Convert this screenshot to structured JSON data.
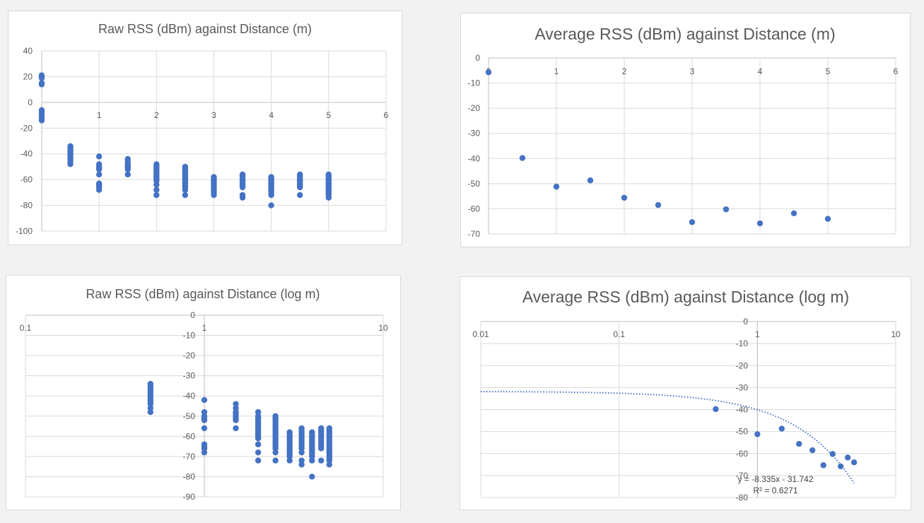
{
  "chart_data": [
    {
      "type": "scatter",
      "title": "Raw RSS (dBm) against Distance (m)",
      "x_scale": "linear",
      "xlim": [
        0,
        6
      ],
      "ylim": [
        -100,
        40
      ],
      "x_ticks": [
        1,
        2,
        3,
        4,
        5,
        6
      ],
      "y_ticks": [
        40,
        20,
        0,
        -20,
        -40,
        -60,
        -80,
        -100
      ],
      "grid": true,
      "points": [
        [
          0,
          21
        ],
        [
          0,
          20
        ],
        [
          0,
          19
        ],
        [
          0,
          15
        ],
        [
          0,
          14
        ],
        [
          0,
          -6
        ],
        [
          0,
          -8
        ],
        [
          0,
          -10
        ],
        [
          0,
          -12
        ],
        [
          0,
          -14
        ],
        [
          0.5,
          -34
        ],
        [
          0.5,
          -35
        ],
        [
          0.5,
          -36
        ],
        [
          0.5,
          -37
        ],
        [
          0.5,
          -38
        ],
        [
          0.5,
          -39
        ],
        [
          0.5,
          -40
        ],
        [
          0.5,
          -41
        ],
        [
          0.5,
          -42
        ],
        [
          0.5,
          -43
        ],
        [
          0.5,
          -44
        ],
        [
          0.5,
          -46
        ],
        [
          0.5,
          -48
        ],
        [
          1,
          -42
        ],
        [
          1,
          -48
        ],
        [
          1,
          -50
        ],
        [
          1,
          -51
        ],
        [
          1,
          -52
        ],
        [
          1,
          -56
        ],
        [
          1,
          -63
        ],
        [
          1,
          -64
        ],
        [
          1,
          -65
        ],
        [
          1,
          -66
        ],
        [
          1,
          -68
        ],
        [
          1.5,
          -44
        ],
        [
          1.5,
          -46
        ],
        [
          1.5,
          -48
        ],
        [
          1.5,
          -49
        ],
        [
          1.5,
          -50
        ],
        [
          1.5,
          -51
        ],
        [
          1.5,
          -52
        ],
        [
          1.5,
          -56
        ],
        [
          2,
          -48
        ],
        [
          2,
          -49
        ],
        [
          2,
          -50
        ],
        [
          2,
          -51
        ],
        [
          2,
          -52
        ],
        [
          2,
          -53
        ],
        [
          2,
          -54
        ],
        [
          2,
          -55
        ],
        [
          2,
          -56
        ],
        [
          2,
          -57
        ],
        [
          2,
          -58
        ],
        [
          2,
          -59
        ],
        [
          2,
          -60
        ],
        [
          2,
          -61
        ],
        [
          2,
          -64
        ],
        [
          2,
          -68
        ],
        [
          2,
          -72
        ],
        [
          2.5,
          -50
        ],
        [
          2.5,
          -51
        ],
        [
          2.5,
          -52
        ],
        [
          2.5,
          -53
        ],
        [
          2.5,
          -54
        ],
        [
          2.5,
          -55
        ],
        [
          2.5,
          -56
        ],
        [
          2.5,
          -57
        ],
        [
          2.5,
          -58
        ],
        [
          2.5,
          -59
        ],
        [
          2.5,
          -60
        ],
        [
          2.5,
          -61
        ],
        [
          2.5,
          -62
        ],
        [
          2.5,
          -63
        ],
        [
          2.5,
          -64
        ],
        [
          2.5,
          -65
        ],
        [
          2.5,
          -66
        ],
        [
          2.5,
          -68
        ],
        [
          2.5,
          -72
        ],
        [
          3,
          -58
        ],
        [
          3,
          -59
        ],
        [
          3,
          -60
        ],
        [
          3,
          -61
        ],
        [
          3,
          -62
        ],
        [
          3,
          -63
        ],
        [
          3,
          -64
        ],
        [
          3,
          -65
        ],
        [
          3,
          -66
        ],
        [
          3,
          -67
        ],
        [
          3,
          -68
        ],
        [
          3,
          -69
        ],
        [
          3,
          -70
        ],
        [
          3,
          -72
        ],
        [
          3.5,
          -56
        ],
        [
          3.5,
          -57
        ],
        [
          3.5,
          -58
        ],
        [
          3.5,
          -59
        ],
        [
          3.5,
          -60
        ],
        [
          3.5,
          -61
        ],
        [
          3.5,
          -62
        ],
        [
          3.5,
          -63
        ],
        [
          3.5,
          -64
        ],
        [
          3.5,
          -65
        ],
        [
          3.5,
          -66
        ],
        [
          3.5,
          -72
        ],
        [
          3.5,
          -74
        ],
        [
          4,
          -58
        ],
        [
          4,
          -59
        ],
        [
          4,
          -60
        ],
        [
          4,
          -61
        ],
        [
          4,
          -62
        ],
        [
          4,
          -63
        ],
        [
          4,
          -64
        ],
        [
          4,
          -65
        ],
        [
          4,
          -66
        ],
        [
          4,
          -67
        ],
        [
          4,
          -68
        ],
        [
          4,
          -69
        ],
        [
          4,
          -70
        ],
        [
          4,
          -72
        ],
        [
          4,
          -80
        ],
        [
          4.5,
          -56
        ],
        [
          4.5,
          -57
        ],
        [
          4.5,
          -58
        ],
        [
          4.5,
          -59
        ],
        [
          4.5,
          -60
        ],
        [
          4.5,
          -61
        ],
        [
          4.5,
          -62
        ],
        [
          4.5,
          -63
        ],
        [
          4.5,
          -64
        ],
        [
          4.5,
          -65
        ],
        [
          4.5,
          -66
        ],
        [
          4.5,
          -72
        ],
        [
          5,
          -56
        ],
        [
          5,
          -57
        ],
        [
          5,
          -58
        ],
        [
          5,
          -59
        ],
        [
          5,
          -60
        ],
        [
          5,
          -61
        ],
        [
          5,
          -62
        ],
        [
          5,
          -63
        ],
        [
          5,
          -64
        ],
        [
          5,
          -65
        ],
        [
          5,
          -66
        ],
        [
          5,
          -67
        ],
        [
          5,
          -68
        ],
        [
          5,
          -69
        ],
        [
          5,
          -70
        ],
        [
          5,
          -71
        ],
        [
          5,
          -72
        ],
        [
          5,
          -74
        ]
      ]
    },
    {
      "type": "scatter",
      "title": "Average RSS (dBm) against Distance (m)",
      "x_scale": "linear",
      "xlim": [
        0,
        6
      ],
      "ylim": [
        -70,
        0
      ],
      "x_ticks": [
        0,
        1,
        2,
        3,
        4,
        5,
        6
      ],
      "y_ticks": [
        0,
        -10,
        -20,
        -30,
        -40,
        -50,
        -60,
        -70
      ],
      "grid": true,
      "points": [
        [
          0,
          -5.7
        ],
        [
          0.5,
          -39.8
        ],
        [
          1,
          -51.2
        ],
        [
          1.5,
          -48.7
        ],
        [
          2,
          -55.6
        ],
        [
          2.5,
          -58.5
        ],
        [
          3,
          -65.3
        ],
        [
          3.5,
          -60.2
        ],
        [
          4,
          -65.8
        ],
        [
          4.5,
          -61.8
        ],
        [
          5,
          -64
        ]
      ]
    },
    {
      "type": "scatter",
      "title": "Raw RSS (dBm) against Distance (log m)",
      "x_scale": "log",
      "xlim": [
        0.1,
        10
      ],
      "ylim": [
        -90,
        0
      ],
      "x_ticks": [
        "0.1",
        "1",
        "10"
      ],
      "y_ticks": [
        0,
        -10,
        -20,
        -30,
        -40,
        -50,
        -60,
        -70,
        -80,
        -90
      ],
      "grid": true,
      "points": [
        [
          0.5,
          -34
        ],
        [
          0.5,
          -35
        ],
        [
          0.5,
          -36
        ],
        [
          0.5,
          -37
        ],
        [
          0.5,
          -38
        ],
        [
          0.5,
          -39
        ],
        [
          0.5,
          -40
        ],
        [
          0.5,
          -41
        ],
        [
          0.5,
          -42
        ],
        [
          0.5,
          -43
        ],
        [
          0.5,
          -44
        ],
        [
          0.5,
          -46
        ],
        [
          0.5,
          -48
        ],
        [
          1,
          -42
        ],
        [
          1,
          -48
        ],
        [
          1,
          -50
        ],
        [
          1,
          -51
        ],
        [
          1,
          -52
        ],
        [
          1,
          -56
        ],
        [
          1,
          -64
        ],
        [
          1,
          -65
        ],
        [
          1,
          -66
        ],
        [
          1,
          -68
        ],
        [
          1.5,
          -44
        ],
        [
          1.5,
          -46
        ],
        [
          1.5,
          -48
        ],
        [
          1.5,
          -49
        ],
        [
          1.5,
          -50
        ],
        [
          1.5,
          -51
        ],
        [
          1.5,
          -52
        ],
        [
          1.5,
          -56
        ],
        [
          2,
          -48
        ],
        [
          2,
          -50
        ],
        [
          2,
          -51
        ],
        [
          2,
          -52
        ],
        [
          2,
          -53
        ],
        [
          2,
          -54
        ],
        [
          2,
          -55
        ],
        [
          2,
          -56
        ],
        [
          2,
          -57
        ],
        [
          2,
          -58
        ],
        [
          2,
          -59
        ],
        [
          2,
          -60
        ],
        [
          2,
          -61
        ],
        [
          2,
          -64
        ],
        [
          2,
          -68
        ],
        [
          2,
          -72
        ],
        [
          2.5,
          -50
        ],
        [
          2.5,
          -51
        ],
        [
          2.5,
          -52
        ],
        [
          2.5,
          -53
        ],
        [
          2.5,
          -54
        ],
        [
          2.5,
          -55
        ],
        [
          2.5,
          -56
        ],
        [
          2.5,
          -57
        ],
        [
          2.5,
          -58
        ],
        [
          2.5,
          -59
        ],
        [
          2.5,
          -60
        ],
        [
          2.5,
          -61
        ],
        [
          2.5,
          -62
        ],
        [
          2.5,
          -63
        ],
        [
          2.5,
          -64
        ],
        [
          2.5,
          -65
        ],
        [
          2.5,
          -66
        ],
        [
          2.5,
          -68
        ],
        [
          2.5,
          -72
        ],
        [
          3,
          -58
        ],
        [
          3,
          -59
        ],
        [
          3,
          -60
        ],
        [
          3,
          -61
        ],
        [
          3,
          -62
        ],
        [
          3,
          -63
        ],
        [
          3,
          -64
        ],
        [
          3,
          -65
        ],
        [
          3,
          -66
        ],
        [
          3,
          -67
        ],
        [
          3,
          -68
        ],
        [
          3,
          -69
        ],
        [
          3,
          -70
        ],
        [
          3,
          -72
        ],
        [
          3.5,
          -56
        ],
        [
          3.5,
          -57
        ],
        [
          3.5,
          -58
        ],
        [
          3.5,
          -59
        ],
        [
          3.5,
          -60
        ],
        [
          3.5,
          -61
        ],
        [
          3.5,
          -62
        ],
        [
          3.5,
          -63
        ],
        [
          3.5,
          -64
        ],
        [
          3.5,
          -65
        ],
        [
          3.5,
          -66
        ],
        [
          3.5,
          -68
        ],
        [
          3.5,
          -72
        ],
        [
          3.5,
          -74
        ],
        [
          4,
          -58
        ],
        [
          4,
          -59
        ],
        [
          4,
          -60
        ],
        [
          4,
          -61
        ],
        [
          4,
          -62
        ],
        [
          4,
          -63
        ],
        [
          4,
          -64
        ],
        [
          4,
          -65
        ],
        [
          4,
          -66
        ],
        [
          4,
          -67
        ],
        [
          4,
          -68
        ],
        [
          4,
          -69
        ],
        [
          4,
          -70
        ],
        [
          4,
          -72
        ],
        [
          4,
          -80
        ],
        [
          4.5,
          -56
        ],
        [
          4.5,
          -57
        ],
        [
          4.5,
          -58
        ],
        [
          4.5,
          -59
        ],
        [
          4.5,
          -60
        ],
        [
          4.5,
          -61
        ],
        [
          4.5,
          -62
        ],
        [
          4.5,
          -63
        ],
        [
          4.5,
          -64
        ],
        [
          4.5,
          -65
        ],
        [
          4.5,
          -66
        ],
        [
          4.5,
          -72
        ],
        [
          5,
          -56
        ],
        [
          5,
          -57
        ],
        [
          5,
          -58
        ],
        [
          5,
          -59
        ],
        [
          5,
          -60
        ],
        [
          5,
          -61
        ],
        [
          5,
          -62
        ],
        [
          5,
          -63
        ],
        [
          5,
          -64
        ],
        [
          5,
          -65
        ],
        [
          5,
          -66
        ],
        [
          5,
          -67
        ],
        [
          5,
          -68
        ],
        [
          5,
          -69
        ],
        [
          5,
          -70
        ],
        [
          5,
          -71
        ],
        [
          5,
          -72
        ],
        [
          5,
          -74
        ]
      ]
    },
    {
      "type": "scatter",
      "title": "Average RSS (dBm) against Distance (log m)",
      "x_scale": "log",
      "xlim": [
        0.01,
        10
      ],
      "ylim": [
        -80,
        0
      ],
      "x_ticks": [
        "0.01",
        "0.1",
        "1",
        "10"
      ],
      "y_ticks": [
        0,
        -10,
        -20,
        -30,
        -40,
        -50,
        -60,
        -70,
        -80
      ],
      "grid": true,
      "points": [
        [
          0.5,
          -39.8
        ],
        [
          1,
          -51.2
        ],
        [
          1.5,
          -48.7
        ],
        [
          2,
          -55.6
        ],
        [
          2.5,
          -58.5
        ],
        [
          3,
          -65.3
        ],
        [
          3.5,
          -60.2
        ],
        [
          4,
          -65.8
        ],
        [
          4.5,
          -61.8
        ],
        [
          5,
          -64
        ]
      ],
      "trendline": {
        "type": "linear",
        "slope": -8.335,
        "intercept": -31.742,
        "x_range": [
          0.01,
          5
        ]
      },
      "annotations": [
        "y = -8.335x - 31.742",
        "R² = 0.6271"
      ]
    }
  ],
  "colors": {
    "marker": "#4472c4",
    "grid": "#d9d9d9",
    "text": "#595959",
    "background": "#f2f2f2"
  }
}
